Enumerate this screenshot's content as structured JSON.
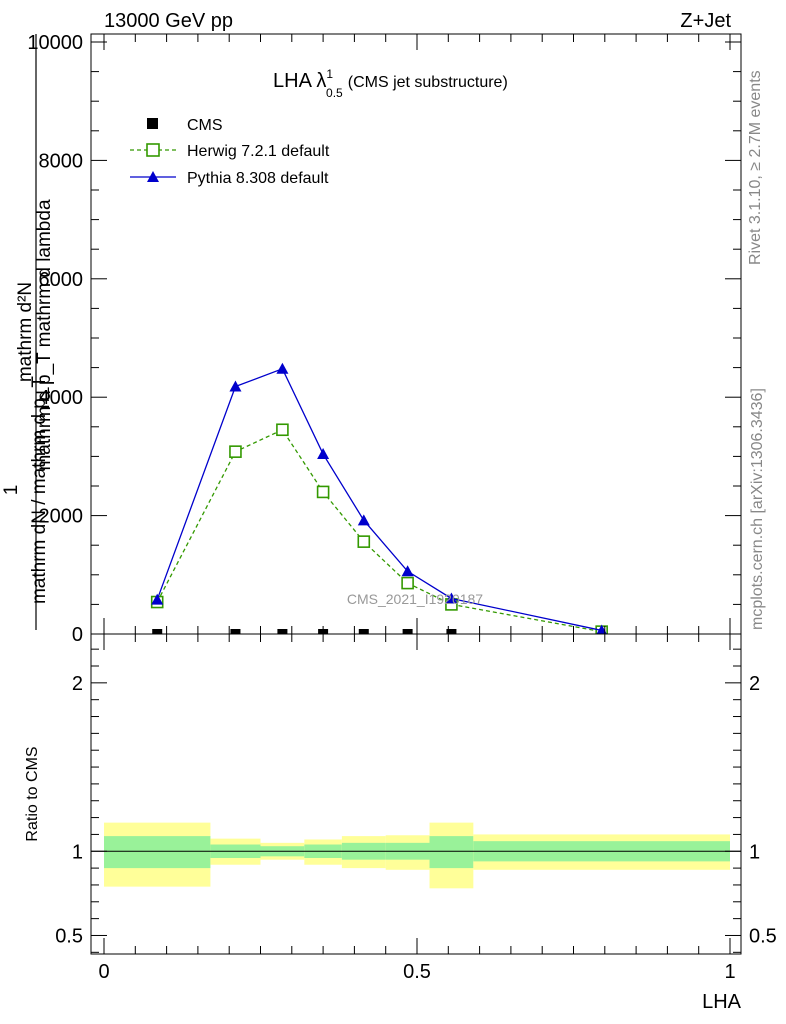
{
  "header": {
    "left": "13000 GeV pp",
    "right": "Z+Jet"
  },
  "side": {
    "rivet": "Rivet 3.1.10, ≥ 2.7M events",
    "mcplots": "mcplots.cern.ch [arXiv:1306.3436]"
  },
  "watermark": "CMS_2021_I1920187",
  "chart_data": [
    {
      "type": "line",
      "title_main": "LHA λ",
      "title_sup": "1",
      "title_sub": "0.5",
      "title_rest": "(CMS jet substructure)",
      "ylabel_a": "mathrm d²N",
      "ylabel_b": "mathrm d p_T mathrm d lambda",
      "ylabel_c": "1",
      "ylabel_d": "mathrm dN / mathrm d p_T",
      "xlim": [
        0,
        1
      ],
      "ylim": [
        0,
        10000
      ],
      "yticks": [
        {
          "v": 0,
          "label": "0"
        },
        {
          "v": 2000,
          "label": "2000"
        },
        {
          "v": 4000,
          "label": "4000"
        },
        {
          "v": 6000,
          "label": "6000"
        },
        {
          "v": 8000,
          "label": "8000"
        },
        {
          "v": 10000,
          "label": "10000"
        }
      ],
      "legend_position": "top-left",
      "series": [
        {
          "name": "CMS",
          "style": "data",
          "color": "#000000",
          "x": [
            0.085,
            0.21,
            0.285,
            0.35,
            0.415,
            0.485,
            0.555
          ],
          "y": [
            0,
            0,
            0,
            0,
            0,
            0,
            0
          ]
        },
        {
          "name": "Herwig 7.2.1 default",
          "style": "open-square-dashed",
          "color": "#339900",
          "x": [
            0.085,
            0.21,
            0.285,
            0.35,
            0.415,
            0.485,
            0.555,
            0.795
          ],
          "y": [
            540,
            3080,
            3450,
            2400,
            1560,
            860,
            500,
            40
          ]
        },
        {
          "name": "Pythia 8.308 default",
          "style": "filled-triangle-solid",
          "color": "#0000cc",
          "x": [
            0.085,
            0.21,
            0.285,
            0.35,
            0.415,
            0.485,
            0.555,
            0.795
          ],
          "y": [
            580,
            4180,
            4480,
            3040,
            1920,
            1060,
            600,
            60
          ]
        }
      ]
    },
    {
      "type": "area",
      "ylabel": "Ratio to CMS",
      "xlabel": "LHA",
      "xlim": [
        0,
        1
      ],
      "ylim": [
        0.39,
        2.29
      ],
      "reference_line": 1,
      "xticks": [
        {
          "v": 0,
          "label": "0"
        },
        {
          "v": 0.5,
          "label": "0.5"
        },
        {
          "v": 1,
          "label": "1"
        }
      ],
      "yticks": [
        {
          "v": 0.5,
          "label": "0.5"
        },
        {
          "v": 1,
          "label": "1"
        },
        {
          "v": 2,
          "label": "2"
        }
      ],
      "bands": [
        {
          "x0": 0.0,
          "x1": 0.17,
          "stat": [
            0.9,
            1.09
          ],
          "total": [
            0.79,
            1.17
          ]
        },
        {
          "x0": 0.17,
          "x1": 0.25,
          "stat": [
            0.96,
            1.04
          ],
          "total": [
            0.92,
            1.075
          ]
        },
        {
          "x0": 0.25,
          "x1": 0.32,
          "stat": [
            0.97,
            1.03
          ],
          "total": [
            0.95,
            1.05
          ]
        },
        {
          "x0": 0.32,
          "x1": 0.38,
          "stat": [
            0.96,
            1.04
          ],
          "total": [
            0.92,
            1.07
          ]
        },
        {
          "x0": 0.38,
          "x1": 0.45,
          "stat": [
            0.95,
            1.05
          ],
          "total": [
            0.9,
            1.09
          ]
        },
        {
          "x0": 0.45,
          "x1": 0.52,
          "stat": [
            0.95,
            1.05
          ],
          "total": [
            0.89,
            1.095
          ]
        },
        {
          "x0": 0.52,
          "x1": 0.59,
          "stat": [
            0.9,
            1.09
          ],
          "total": [
            0.78,
            1.17
          ]
        },
        {
          "x0": 0.59,
          "x1": 1.0,
          "stat": [
            0.94,
            1.06
          ],
          "total": [
            0.89,
            1.1
          ]
        }
      ],
      "colors": {
        "stat": "#99f299",
        "total": "#ffff99"
      }
    }
  ]
}
